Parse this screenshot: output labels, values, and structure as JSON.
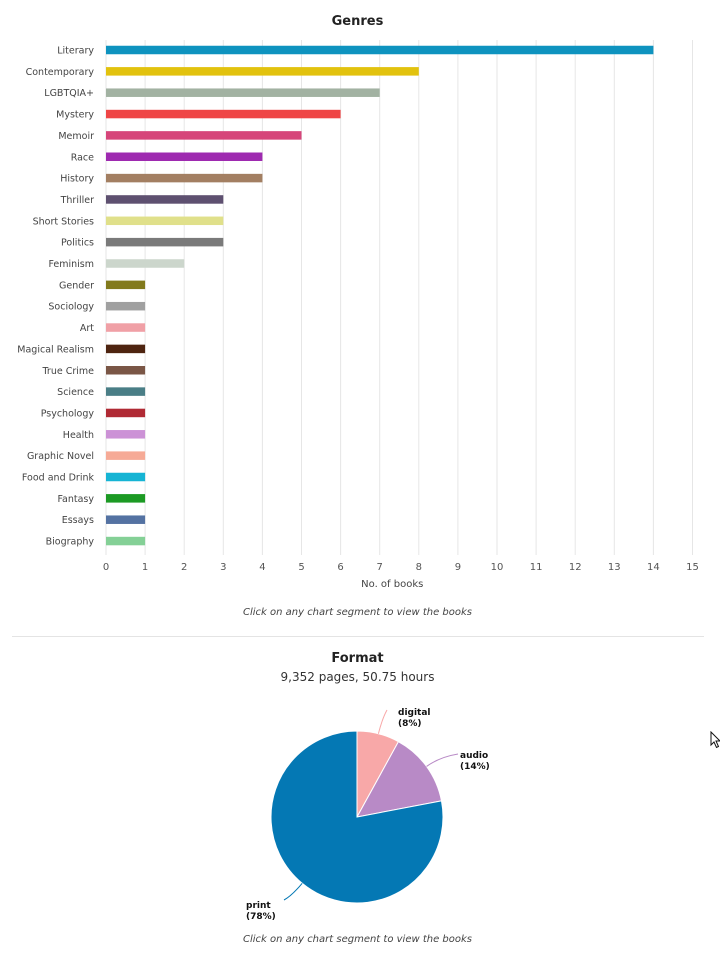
{
  "genres": {
    "title": "Genres",
    "hint": "Click on any chart segment to view the books"
  },
  "format": {
    "title": "Format",
    "subtitle": "9,352 pages, 50.75 hours",
    "hint": "Click on any chart segment to view the books"
  },
  "cursor_icon": "mouse-pointer-icon",
  "chart_data": [
    {
      "type": "bar",
      "orientation": "horizontal",
      "title": "Genres",
      "xlabel": "No. of books",
      "ylabel": "",
      "xlim": [
        0,
        15
      ],
      "xticks": [
        "0",
        "1",
        "2",
        "3",
        "4",
        "5",
        "6",
        "7",
        "8",
        "9",
        "10",
        "11",
        "12",
        "13",
        "14",
        "15"
      ],
      "grid": true,
      "categories": [
        "Literary",
        "Contemporary",
        "LGBTQIA+",
        "Mystery",
        "Memoir",
        "Race",
        "History",
        "Thriller",
        "Short Stories",
        "Politics",
        "Feminism",
        "Gender",
        "Sociology",
        "Art",
        "Magical Realism",
        "True Crime",
        "Science",
        "Psychology",
        "Health",
        "Graphic Novel",
        "Food and Drink",
        "Fantasy",
        "Essays",
        "Biography"
      ],
      "values": [
        14,
        8,
        7,
        6,
        5,
        4,
        4,
        3,
        3,
        3,
        2,
        1,
        1,
        1,
        1,
        1,
        1,
        1,
        1,
        1,
        1,
        1,
        1,
        1
      ],
      "colors": [
        "#0e93bf",
        "#e2c20e",
        "#a2b2a2",
        "#ef4646",
        "#d6457a",
        "#9e2ab0",
        "#a37f62",
        "#5e5070",
        "#e0e08a",
        "#7a7a7a",
        "#ccd6cc",
        "#827a1c",
        "#a0a0a0",
        "#f0a0a6",
        "#4e2410",
        "#7a5646",
        "#4a7e86",
        "#b02a34",
        "#cc92d6",
        "#f6aa96",
        "#16b4d4",
        "#1c9a24",
        "#5472a2",
        "#84d096"
      ]
    },
    {
      "type": "pie",
      "title": "Format",
      "slices": [
        {
          "label": "digital",
          "percent_label": "(8%)",
          "value": 8,
          "color": "#f8a8a8"
        },
        {
          "label": "audio",
          "percent_label": "(14%)",
          "value": 14,
          "color": "#b88ac6"
        },
        {
          "label": "print",
          "percent_label": "(78%)",
          "value": 78,
          "color": "#0478b4"
        }
      ]
    }
  ]
}
